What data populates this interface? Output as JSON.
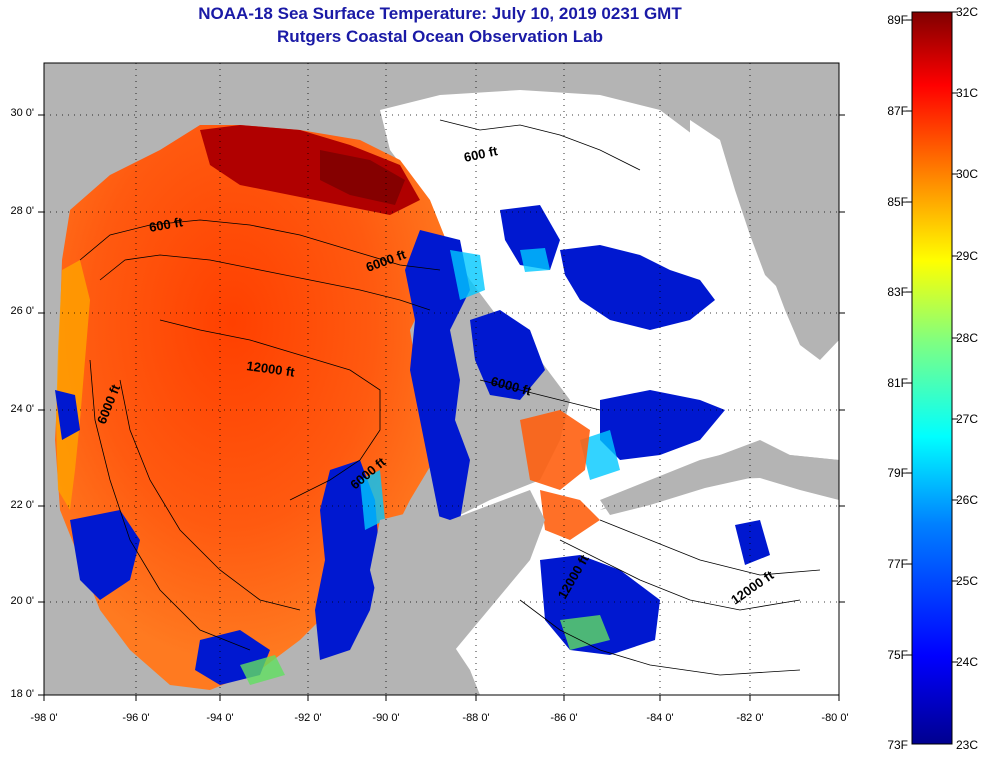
{
  "title": {
    "line1": "NOAA-18 Sea Surface Temperature:  July 10, 2019 0231 GMT",
    "line2": "Rutgers Coastal Ocean Observation Lab"
  },
  "axes": {
    "lat_labels": [
      "30 0'",
      "28 0'",
      "26 0'",
      "24 0'",
      "22 0'",
      "20 0'",
      "18 0'"
    ],
    "lon_labels": [
      "-98 0'",
      "-96 0'",
      "-94 0'",
      "-92 0'",
      "-90 0'",
      "-88 0'",
      "-86 0'",
      "-84 0'",
      "-82 0'",
      "-80 0'"
    ]
  },
  "colorbar": {
    "fahrenheit_labels": [
      "89F",
      "87F",
      "85F",
      "83F",
      "81F",
      "79F",
      "77F",
      "75F",
      "73F"
    ],
    "celsius_labels": [
      "32C",
      "31C",
      "30C",
      "29C",
      "28C",
      "27C",
      "26C",
      "25C",
      "24C",
      "23C"
    ],
    "range_celsius": [
      23,
      32
    ],
    "colors": [
      "#00008f",
      "#0000ff",
      "#0080ff",
      "#00ffff",
      "#80ff80",
      "#ffff00",
      "#ff8000",
      "#ff0000",
      "#800000"
    ]
  },
  "contours": {
    "labels": [
      "600 ft",
      "600 ft",
      "6000 ft",
      "12000 ft",
      "6000 ft",
      "6000 ft",
      "6000 ft",
      "12000 ft",
      "12000 ft"
    ]
  },
  "colors": {
    "land": "#b4b4b4",
    "cloud": "#ffffff",
    "title": "#1a1aa6",
    "grid": "#000000"
  }
}
